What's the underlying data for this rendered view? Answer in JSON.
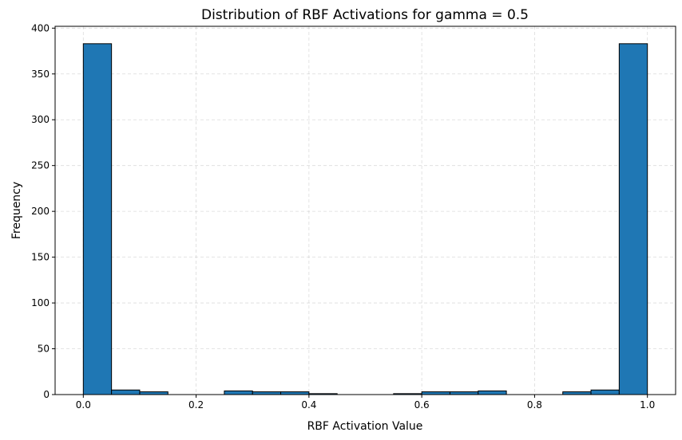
{
  "chart_data": {
    "type": "bar",
    "title": "Distribution of RBF Activations for gamma = 0.5",
    "xlabel": "RBF Activation Value",
    "ylabel": "Frequency",
    "xlim": [
      -0.05,
      1.05
    ],
    "ylim": [
      0,
      402
    ],
    "xticks": [
      "0.0",
      "0.2",
      "0.4",
      "0.6",
      "0.8",
      "1.0"
    ],
    "yticks": [
      "0",
      "50",
      "100",
      "150",
      "200",
      "250",
      "300",
      "350",
      "400"
    ],
    "grid": true,
    "bar_color": "#1f77b4",
    "bins": [
      {
        "start": 0.0,
        "end": 0.05,
        "count": 383
      },
      {
        "start": 0.05,
        "end": 0.1,
        "count": 5
      },
      {
        "start": 0.1,
        "end": 0.15,
        "count": 3
      },
      {
        "start": 0.15,
        "end": 0.2,
        "count": 0
      },
      {
        "start": 0.2,
        "end": 0.25,
        "count": 0
      },
      {
        "start": 0.25,
        "end": 0.3,
        "count": 4
      },
      {
        "start": 0.3,
        "end": 0.35,
        "count": 3
      },
      {
        "start": 0.35,
        "end": 0.4,
        "count": 3
      },
      {
        "start": 0.4,
        "end": 0.45,
        "count": 1
      },
      {
        "start": 0.45,
        "end": 0.5,
        "count": 0
      },
      {
        "start": 0.5,
        "end": 0.55,
        "count": 0
      },
      {
        "start": 0.55,
        "end": 0.6,
        "count": 1
      },
      {
        "start": 0.6,
        "end": 0.65,
        "count": 3
      },
      {
        "start": 0.65,
        "end": 0.7,
        "count": 3
      },
      {
        "start": 0.7,
        "end": 0.75,
        "count": 4
      },
      {
        "start": 0.75,
        "end": 0.8,
        "count": 0
      },
      {
        "start": 0.8,
        "end": 0.85,
        "count": 0
      },
      {
        "start": 0.85,
        "end": 0.9,
        "count": 3
      },
      {
        "start": 0.9,
        "end": 0.95,
        "count": 5
      },
      {
        "start": 0.95,
        "end": 1.0,
        "count": 383
      }
    ]
  }
}
